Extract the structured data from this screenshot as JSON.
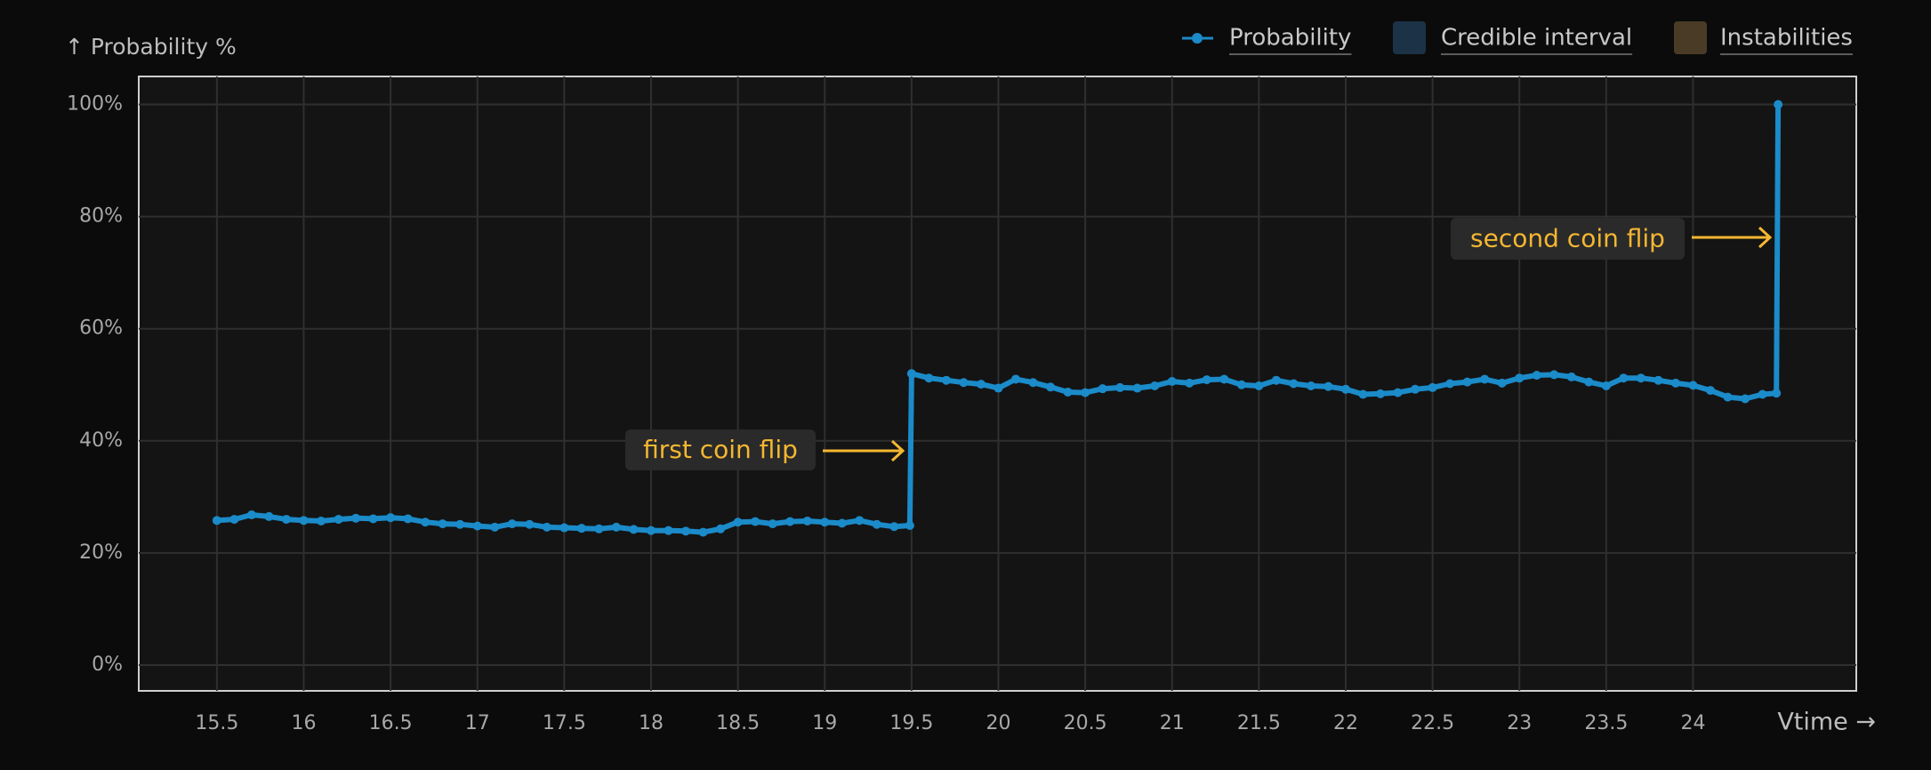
{
  "chart_data": {
    "type": "line",
    "y_axis_label": "↑ Probability %",
    "x_axis_label": "Vtime →",
    "legend": [
      {
        "name": "Probability",
        "color": "#1b8bc9"
      },
      {
        "name": "Credible interval",
        "color": "#1c3347"
      },
      {
        "name": "Instabilities",
        "color": "#4a3b27"
      }
    ],
    "annotations": [
      "first coin flip",
      "second coin flip"
    ],
    "xlim": [
      15.05,
      24.94
    ],
    "xticks": [
      15.5,
      16,
      16.5,
      17,
      17.5,
      18,
      18.5,
      19,
      19.5,
      20,
      20.5,
      21,
      21.5,
      22,
      22.5,
      23,
      23.5,
      24
    ],
    "ylim": [
      -4.6,
      105
    ],
    "yticks": [
      {
        "value": 0,
        "label": "0%"
      },
      {
        "value": 20,
        "label": "20%"
      },
      {
        "value": 40,
        "label": "40%"
      },
      {
        "value": 60,
        "label": "60%"
      },
      {
        "value": 80,
        "label": "80%"
      },
      {
        "value": 100,
        "label": "100%"
      }
    ],
    "grid": true,
    "x": [
      15.5,
      15.6,
      15.7,
      15.8,
      15.9,
      16,
      16.1,
      16.2,
      16.3,
      16.4,
      16.5,
      16.6,
      16.7,
      16.8,
      16.9,
      17,
      17.1,
      17.2,
      17.3,
      17.4,
      17.5,
      17.6,
      17.7,
      17.8,
      17.9,
      18,
      18.1,
      18.2,
      18.3,
      18.4,
      18.5,
      18.6,
      18.7,
      18.8,
      18.9,
      19,
      19.1,
      19.2,
      19.3,
      19.4,
      19.49,
      19.5,
      19.6,
      19.7,
      19.8,
      19.9,
      20,
      20.1,
      20.2,
      20.3,
      20.4,
      20.5,
      20.6,
      20.7,
      20.8,
      20.9,
      21,
      21.1,
      21.2,
      21.3,
      21.4,
      21.5,
      21.6,
      21.7,
      21.8,
      21.9,
      22,
      22.1,
      22.2,
      22.3,
      22.4,
      22.5,
      22.6,
      22.7,
      22.8,
      22.9,
      23,
      23.1,
      23.2,
      23.3,
      23.4,
      23.5,
      23.6,
      23.7,
      23.8,
      23.9,
      24,
      24.1,
      24.2,
      24.3,
      24.4,
      24.48,
      24.49
    ],
    "series": [
      {
        "name": "Probability",
        "color": "#1b8bc9",
        "values": [
          25.8,
          26,
          26.8,
          26.5,
          26,
          25.8,
          25.7,
          26,
          26.2,
          26.1,
          26.3,
          26.1,
          25.5,
          25.2,
          25.1,
          24.8,
          24.6,
          25.2,
          25.1,
          24.6,
          24.5,
          24.4,
          24.3,
          24.6,
          24.2,
          24,
          24,
          23.9,
          23.7,
          24.3,
          25.5,
          25.6,
          25.2,
          25.6,
          25.7,
          25.5,
          25.3,
          25.8,
          25.1,
          24.7,
          24.9,
          52,
          51.2,
          50.8,
          50.4,
          50.1,
          49.4,
          51,
          50.4,
          49.6,
          48.7,
          48.6,
          49.3,
          49.5,
          49.4,
          49.8,
          50.6,
          50.3,
          50.9,
          51,
          50,
          49.8,
          50.8,
          50.2,
          49.8,
          49.7,
          49.2,
          48.3,
          48.4,
          48.6,
          49.2,
          49.5,
          50.2,
          50.5,
          51,
          50.3,
          51.2,
          51.7,
          51.8,
          51.4,
          50.5,
          49.8,
          51.2,
          51.2,
          50.8,
          50.3,
          49.9,
          49,
          47.8,
          47.5,
          48.3,
          48.5,
          100
        ]
      }
    ]
  }
}
